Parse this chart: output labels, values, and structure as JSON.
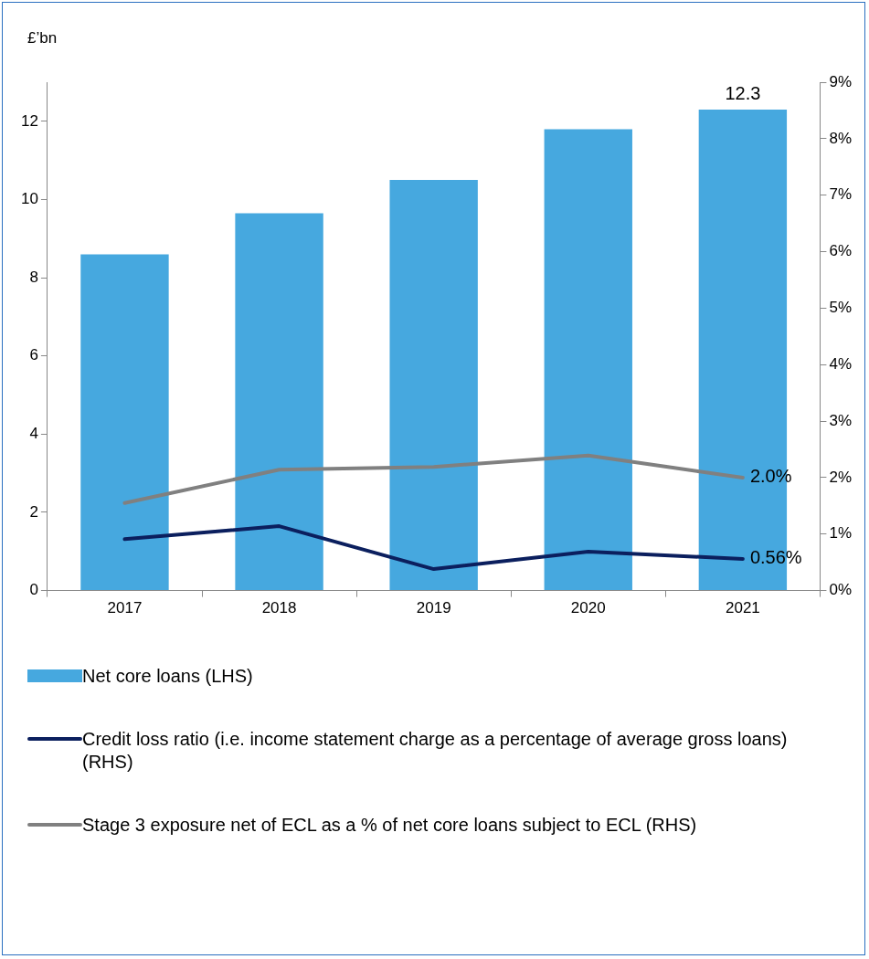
{
  "chart_data": {
    "type": "bar",
    "ylabel": "£’bn",
    "categories": [
      "2017",
      "2018",
      "2019",
      "2020",
      "2021"
    ],
    "series": [
      {
        "name": "Net core loans (LHS)",
        "color": "#46a8df",
        "values": [
          8.6,
          9.65,
          10.5,
          11.8,
          12.3
        ],
        "value_labels": [
          null,
          null,
          null,
          null,
          "12.3"
        ]
      },
      {
        "name": "Credit loss ratio (i.e. income statement charge as a percentage of average gross loans)  (RHS)",
        "type": "line",
        "axis": "y2",
        "color": "#0b1f5e",
        "values": [
          0.91,
          1.14,
          0.38,
          0.69,
          0.56
        ],
        "value_labels": [
          null,
          null,
          null,
          null,
          "0.56%"
        ]
      },
      {
        "name": "Stage 3 exposure net of ECL as a % of net core loans subject to ECL (RHS)",
        "type": "line",
        "axis": "y2",
        "color": "#808080",
        "values": [
          1.55,
          2.14,
          2.19,
          2.39,
          2.0
        ],
        "value_labels": [
          null,
          null,
          null,
          null,
          "2.0%"
        ]
      }
    ],
    "ylim": [
      0,
      13
    ],
    "yticks": [
      0,
      2,
      4,
      6,
      8,
      10,
      12
    ],
    "y2lim": [
      0,
      9
    ],
    "y2ticks": [
      {
        "value": 0,
        "label": "0%"
      },
      {
        "value": 1,
        "label": "1%"
      },
      {
        "value": 2,
        "label": "2%"
      },
      {
        "value": 3,
        "label": "3%"
      },
      {
        "value": 4,
        "label": "4%"
      },
      {
        "value": 5,
        "label": "5%"
      },
      {
        "value": 6,
        "label": "6%"
      },
      {
        "value": 7,
        "label": "7%"
      },
      {
        "value": 8,
        "label": "8%"
      },
      {
        "value": 9,
        "label": "9%"
      }
    ],
    "grid": false,
    "legend": "bottom",
    "marker": "none"
  }
}
